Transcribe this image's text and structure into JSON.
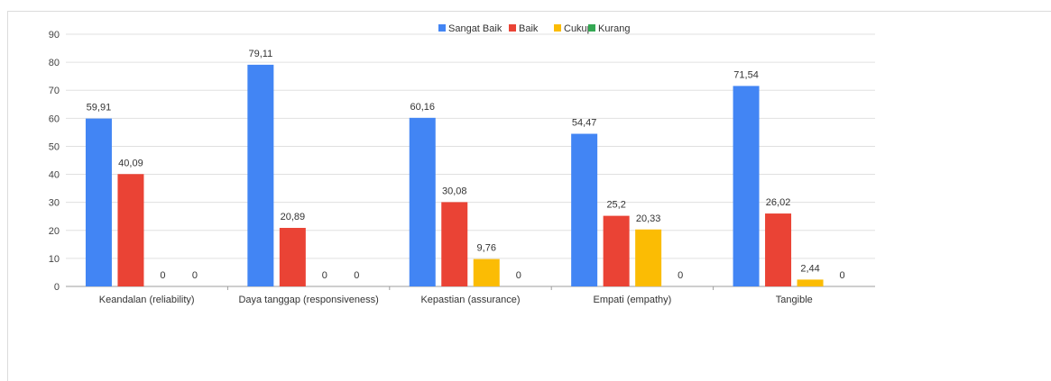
{
  "chart_data": {
    "type": "bar",
    "title": "",
    "xlabel": "",
    "ylabel": "",
    "ylim": [
      0,
      90
    ],
    "yticks": [
      0,
      10,
      20,
      30,
      40,
      50,
      60,
      70,
      80,
      90
    ],
    "grid": true,
    "legend_position": "top",
    "categories": [
      "Keandalan (reliability)",
      "Daya tanggap (responsiveness)",
      "Kepastian (assurance)",
      "Empati (empathy)",
      "Tangible"
    ],
    "series": [
      {
        "name": "Sangat Baik",
        "color": "#4285f4",
        "values": [
          59.91,
          79.11,
          60.16,
          54.47,
          71.54
        ],
        "labels": [
          "59,91",
          "79,11",
          "60,16",
          "54,47",
          "71,54"
        ]
      },
      {
        "name": "Baik",
        "color": "#ea4335",
        "values": [
          40.09,
          20.89,
          30.08,
          25.2,
          26.02
        ],
        "labels": [
          "40,09",
          "20,89",
          "30,08",
          "25,2",
          "26,02"
        ]
      },
      {
        "name": "Cukup",
        "color": "#fbbc04",
        "values": [
          0,
          0,
          9.76,
          20.33,
          2.44
        ],
        "labels": [
          "0",
          "0",
          "9,76",
          "20,33",
          "2,44"
        ]
      },
      {
        "name": "Kurang",
        "color": "#34a853",
        "values": [
          0,
          0,
          0,
          0,
          0
        ],
        "labels": [
          "0",
          "0",
          "0",
          "0",
          "0"
        ]
      }
    ]
  }
}
